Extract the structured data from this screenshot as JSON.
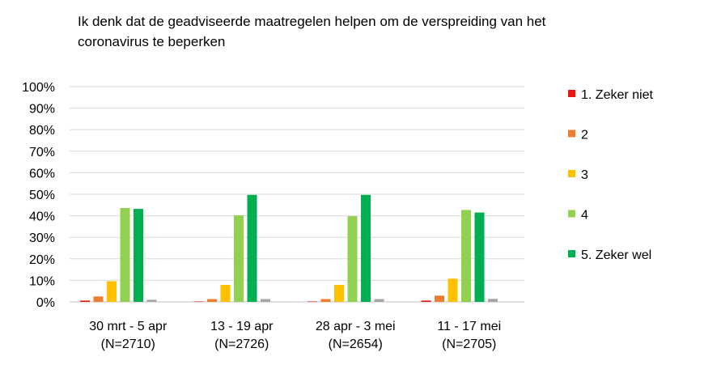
{
  "chart_data": {
    "type": "bar",
    "title": "Ik denk dat de geadviseerde  maatregelen helpen om de verspreiding van het\ncoronavirus te beperken",
    "xlabel": "",
    "ylabel": "",
    "ylim": [
      0,
      100
    ],
    "yticks": [
      "0%",
      "10%",
      "20%",
      "30%",
      "40%",
      "50%",
      "60%",
      "70%",
      "80%",
      "90%",
      "100%"
    ],
    "categories": [
      [
        "30 mrt - 5 apr",
        "(N=2710)"
      ],
      [
        "13 - 19 apr",
        "(N=2726)"
      ],
      [
        "28 apr - 3 mei",
        "(N=2654)"
      ],
      [
        "11 - 17 mei",
        "(N=2705)"
      ]
    ],
    "series": [
      {
        "name": "1. Zeker niet",
        "color": "#e8170f",
        "values": [
          0.6,
          0.2,
          0.2,
          0.6
        ]
      },
      {
        "name": "2",
        "color": "#ed7d31",
        "values": [
          2.5,
          1.3,
          1.3,
          2.9
        ]
      },
      {
        "name": "3",
        "color": "#ffc000",
        "values": [
          9.6,
          7.9,
          7.9,
          10.8
        ]
      },
      {
        "name": "4",
        "color": "#92d050",
        "values": [
          43.6,
          40.2,
          39.8,
          42.7
        ]
      },
      {
        "name": "5. Zeker wel",
        "color": "#00b050",
        "values": [
          43.2,
          49.7,
          49.7,
          41.5
        ]
      },
      {
        "name": "",
        "color": "#a5a5a5",
        "values": [
          1.0,
          1.3,
          1.3,
          1.4
        ]
      }
    ],
    "grid": true,
    "legend_position": "right"
  }
}
